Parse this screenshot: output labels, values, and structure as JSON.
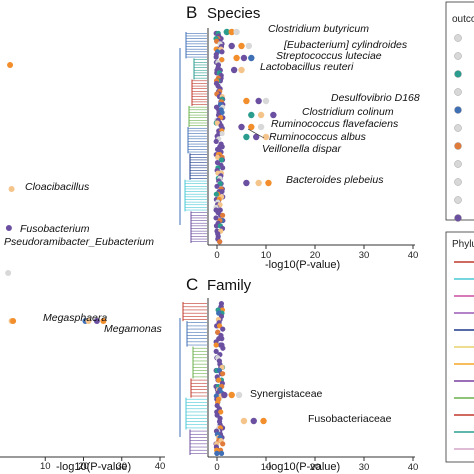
{
  "legend": {
    "outcome_title": "outco",
    "phylum_title": "Phylu"
  },
  "chart_data": [
    {
      "panel": "A",
      "type": "scatter",
      "title": "",
      "xlabel": "-log10(P-value)",
      "xlim": [
        0,
        42
      ],
      "x_ticks": [
        "10",
        "20",
        "30",
        "40"
      ],
      "labels": [
        {
          "text": "Cloacibacillus",
          "x": 3
        },
        {
          "text": "Fusobacterium",
          "x": 1
        },
        {
          "text": "Pseudoramibacter_Eubacterium",
          "x": 0
        },
        {
          "text": "Megasphaera",
          "x": 18
        },
        {
          "text": "Megamonas",
          "x": 24
        }
      ],
      "points": [
        {
          "x": 0.8,
          "color": "#f28e2b"
        },
        {
          "x": 1.2,
          "color": "#f5c48a"
        },
        {
          "x": 0.5,
          "color": "#6b4fa0"
        },
        {
          "x": 0.3,
          "color": "#d8d8d8"
        },
        {
          "x": 1.2,
          "color": "#f5c48a"
        },
        {
          "x": 1.6,
          "color": "#f28e2b"
        },
        {
          "x": 20.5,
          "color": "#3f6fb5"
        },
        {
          "x": 21.3,
          "color": "#f5c48a"
        },
        {
          "x": 23.5,
          "color": "#6b4fa0"
        },
        {
          "x": 25.2,
          "color": "#f28e2b"
        }
      ]
    },
    {
      "panel": "B",
      "type": "scatter",
      "title": "Species",
      "xlabel": "-log10(P-value)",
      "xlim": [
        -1,
        42
      ],
      "x_ticks": [
        "0",
        "10",
        "20",
        "30",
        "40"
      ],
      "labels": [
        {
          "text": "Clostridium butyricum",
          "x": 4
        },
        {
          "text": "[Eubacterium] cylindroides",
          "x": 5
        },
        {
          "text": "Streptococcus luteciae",
          "x": 5
        },
        {
          "text": "Lactobacillus reuteri",
          "x": 5
        },
        {
          "text": "Desulfovibrio D168",
          "x": 12
        },
        {
          "text": "Clostridium colinum",
          "x": 11
        },
        {
          "text": "Ruminococcus flavefaciens",
          "x": 9
        },
        {
          "text": "Ruminococcus albus",
          "x": 8
        },
        {
          "text": "Veillonella dispar",
          "x": 6
        },
        {
          "text": "Bacteroides plebeius",
          "x": 10
        }
      ]
    },
    {
      "panel": "C",
      "type": "scatter",
      "title": "Family",
      "xlabel": "-log10(P-value)",
      "xlim": [
        -1,
        42
      ],
      "x_ticks": [
        "0",
        "10",
        "20",
        "30",
        "40"
      ],
      "labels": [
        {
          "text": "Synergistaceae",
          "x": 4
        },
        {
          "text": "Fusobacteriaceae",
          "x": 8
        }
      ]
    }
  ]
}
